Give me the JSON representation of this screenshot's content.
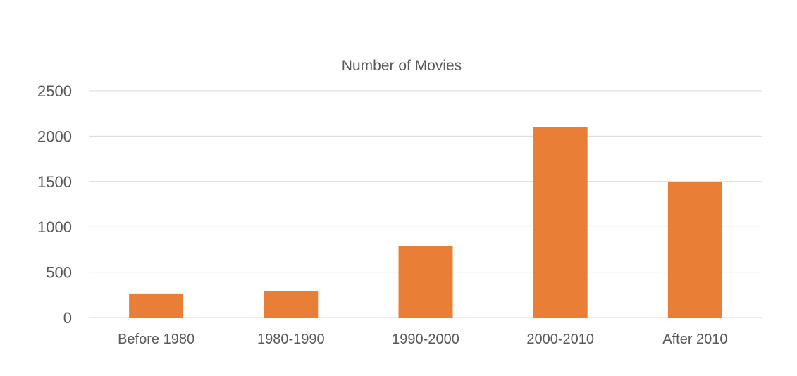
{
  "chart_data": {
    "type": "bar",
    "title": "Number of Movies",
    "categories": [
      "Before 1980",
      "1980-1990",
      "1990-2000",
      "2000-2010",
      "After 2010"
    ],
    "values": [
      265,
      295,
      785,
      2100,
      1495
    ],
    "xlabel": "",
    "ylabel": "",
    "ylim": [
      0,
      2500
    ],
    "yticks": [
      "0",
      "500",
      "1000",
      "1500",
      "2000",
      "2500"
    ],
    "grid": true,
    "legend": "none",
    "bar_color": "#E97F37",
    "grid_color": "#D9D9D9",
    "text_color": "#595959"
  }
}
